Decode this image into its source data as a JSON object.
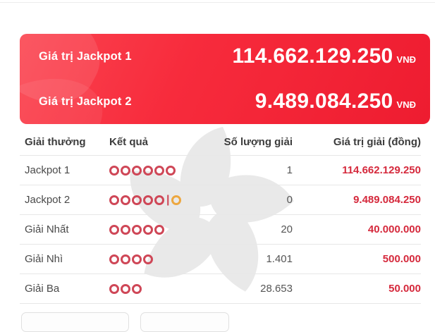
{
  "banner": {
    "rows": [
      {
        "label": "Giá trị Jackpot 1",
        "value": "114.662.129.250",
        "currency": "VNĐ"
      },
      {
        "label": "Giá trị Jackpot 2",
        "value": "9.489.084.250",
        "currency": "VNĐ"
      }
    ]
  },
  "table": {
    "headers": [
      "Giải thưởng",
      "Kết quả",
      "Số lượng giải",
      "Giá trị giải (đồng)"
    ],
    "rows": [
      {
        "prize": "Jackpot 1",
        "result": {
          "main": 6,
          "bonus": 0,
          "separator": "|"
        },
        "count": "1",
        "value": "114.662.129.250"
      },
      {
        "prize": "Jackpot 2",
        "result": {
          "main": 5,
          "bonus": 1,
          "separator": "|"
        },
        "count": "0",
        "value": "9.489.084.250"
      },
      {
        "prize": "Giải Nhất",
        "result": {
          "main": 5,
          "bonus": 0,
          "separator": "|"
        },
        "count": "20",
        "value": "40.000.000"
      },
      {
        "prize": "Giải Nhì",
        "result": {
          "main": 4,
          "bonus": 0,
          "separator": "|"
        },
        "count": "1.401",
        "value": "500.000"
      },
      {
        "prize": "Giải Ba",
        "result": {
          "main": 3,
          "bonus": 0,
          "separator": "|"
        },
        "count": "28.653",
        "value": "50.000"
      }
    ]
  },
  "colors": {
    "banner_red_start": "#fb4450",
    "banner_red_end": "#ee1c30",
    "value_red": "#d5293c",
    "ring_red": "#cf4757",
    "ring_orange": "#eda73f",
    "watermark_gray": "#e9e9e9"
  }
}
